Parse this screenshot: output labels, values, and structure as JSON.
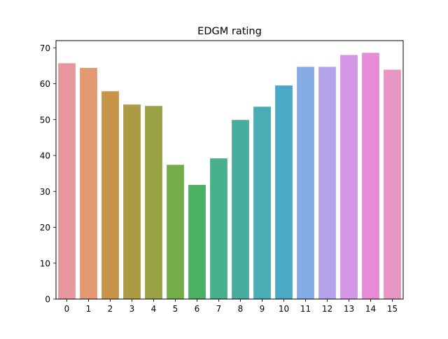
{
  "chart_data": {
    "type": "bar",
    "title": "EDGM rating",
    "xlabel": "",
    "ylabel": "",
    "categories": [
      "0",
      "1",
      "2",
      "3",
      "4",
      "5",
      "6",
      "7",
      "8",
      "9",
      "10",
      "11",
      "12",
      "13",
      "14",
      "15"
    ],
    "values": [
      65.7,
      64.4,
      57.9,
      54.2,
      53.8,
      37.4,
      31.8,
      39.2,
      49.9,
      53.6,
      59.5,
      64.7,
      64.7,
      68.0,
      68.6,
      63.9
    ],
    "ylim": [
      0,
      72
    ],
    "yticks": [
      0,
      10,
      20,
      30,
      40,
      50,
      60,
      70
    ],
    "grid": false,
    "colors": [
      "#e8979f",
      "#e39872",
      "#c8944a",
      "#ad9a45",
      "#99a346",
      "#74ae4b",
      "#4bb162",
      "#48b08c",
      "#49ad9e",
      "#4aacb4",
      "#4ba8c7",
      "#85ace4",
      "#b5a3ea",
      "#d497e5",
      "#e78bd8",
      "#e796c3"
    ]
  }
}
